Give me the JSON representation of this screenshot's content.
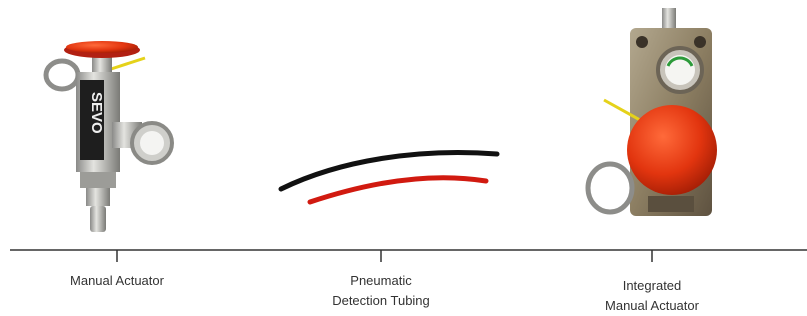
{
  "items": [
    {
      "label": [
        "Manual Actuator"
      ],
      "device_text": "SEVO"
    },
    {
      "label": [
        "Pneumatic",
        "Detection Tubing"
      ]
    },
    {
      "label": [
        "Integrated",
        "Manual Actuator"
      ]
    }
  ]
}
